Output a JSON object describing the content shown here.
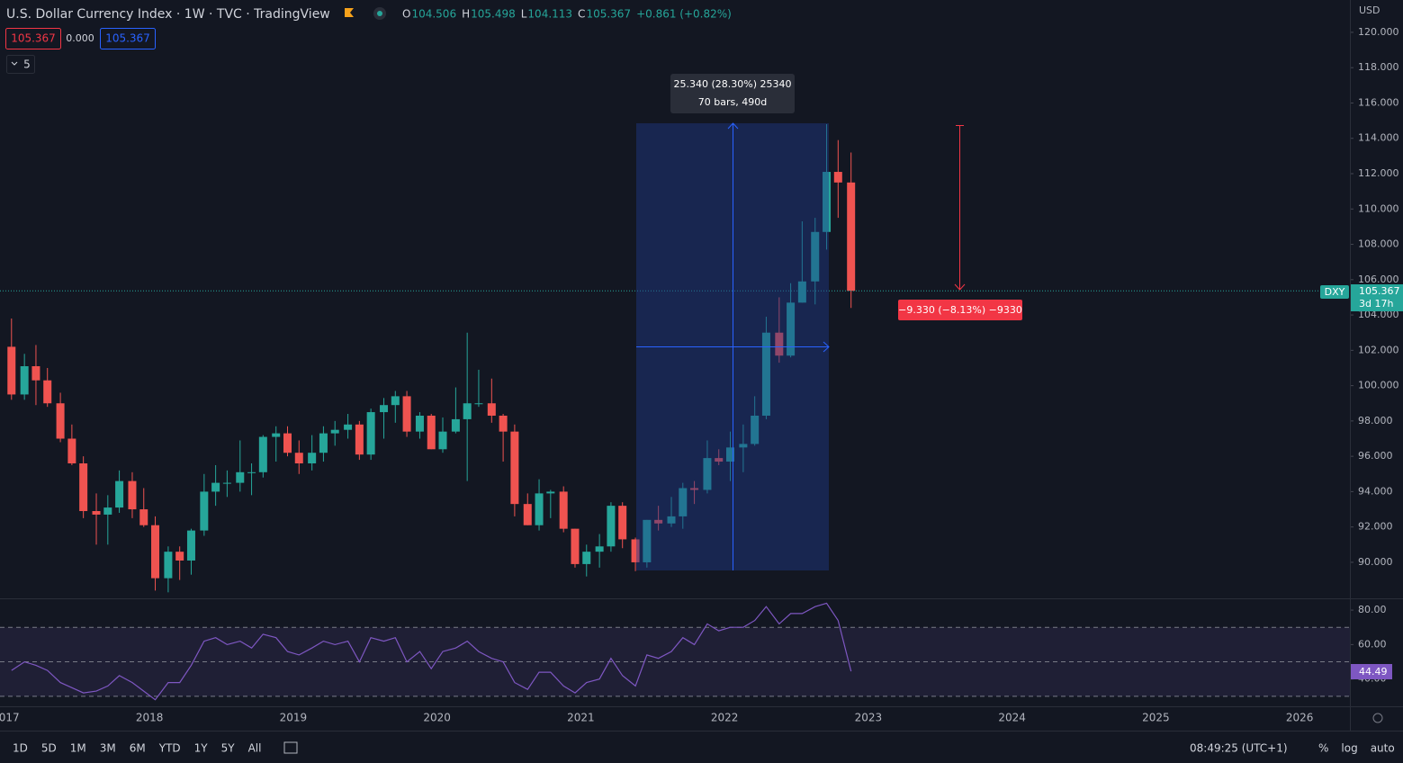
{
  "ui": {
    "title": "U.S. Dollar Currency Index · 1W · TVC · TradingView",
    "ohlc": [
      {
        "k": "O",
        "v": "104.506"
      },
      {
        "k": "H",
        "v": "105.498"
      },
      {
        "k": "L",
        "v": "104.113"
      },
      {
        "k": "C",
        "v": "105.367"
      }
    ],
    "change": "+0.861 (+0.82%)",
    "bid": "105.367",
    "spread": "0.000",
    "ask": "105.367",
    "collapsed": "5",
    "currency": "USD",
    "measure_label": "25.340 (28.30%) 25340",
    "measure_bars": "70 bars, 490d",
    "ruler_label": "−9.330 (−8.13%) −9330",
    "symbol": "DXY",
    "price_badge": "105.367",
    "countdown": "3d 17h",
    "rsi_badge": "44.49",
    "ranges": [
      "1D",
      "5D",
      "1M",
      "3M",
      "6M",
      "YTD",
      "1Y",
      "5Y",
      "All"
    ],
    "clock": "08:49:25 (UTC+1)",
    "scale_opts": [
      "%",
      "log",
      "auto"
    ]
  },
  "chart_data": {
    "type": "candlestick",
    "up_color": "#26a69a",
    "down_color": "#ef5350",
    "x": [
      2017.04,
      2017.13,
      2017.21,
      2017.29,
      2017.38,
      2017.46,
      2017.54,
      2017.63,
      2017.71,
      2017.79,
      2017.88,
      2017.96,
      2018.04,
      2018.13,
      2018.21,
      2018.29,
      2018.38,
      2018.46,
      2018.54,
      2018.63,
      2018.71,
      2018.79,
      2018.88,
      2018.96,
      2019.04,
      2019.13,
      2019.21,
      2019.29,
      2019.38,
      2019.46,
      2019.54,
      2019.63,
      2019.71,
      2019.79,
      2019.88,
      2019.96,
      2020.04,
      2020.13,
      2020.21,
      2020.29,
      2020.38,
      2020.46,
      2020.54,
      2020.63,
      2020.71,
      2020.79,
      2020.88,
      2020.96,
      2021.04,
      2021.13,
      2021.21,
      2021.29,
      2021.38,
      2021.46,
      2021.54,
      2021.63,
      2021.71,
      2021.79,
      2021.88,
      2021.96,
      2022.04,
      2022.13,
      2022.21,
      2022.29,
      2022.38,
      2022.46,
      2022.54,
      2022.63,
      2022.71,
      2022.79,
      2022.88
    ],
    "open": [
      102.2,
      99.5,
      101.1,
      100.3,
      99.0,
      97.0,
      95.6,
      92.9,
      92.7,
      93.1,
      94.6,
      93.0,
      92.1,
      89.1,
      90.6,
      90.1,
      91.8,
      94.0,
      94.5,
      94.5,
      95.1,
      95.1,
      97.1,
      97.3,
      96.2,
      95.6,
      96.2,
      97.3,
      97.5,
      97.8,
      96.1,
      98.5,
      98.9,
      99.4,
      97.4,
      98.3,
      96.4,
      97.4,
      98.1,
      99.0,
      99.0,
      98.3,
      97.4,
      93.3,
      92.1,
      93.9,
      94.0,
      91.9,
      89.9,
      90.6,
      90.9,
      93.2,
      91.3,
      90.0,
      92.4,
      92.2,
      92.6,
      94.2,
      94.1,
      95.9,
      95.7,
      96.5,
      96.7,
      98.3,
      103.0,
      101.7,
      104.7,
      105.9,
      108.7,
      112.1,
      111.5
    ],
    "high": [
      103.8,
      101.8,
      102.3,
      101.0,
      99.6,
      97.8,
      96.0,
      93.9,
      93.8,
      95.2,
      95.1,
      94.2,
      92.6,
      90.9,
      90.9,
      91.9,
      95.0,
      95.5,
      95.2,
      96.9,
      95.6,
      97.2,
      97.7,
      97.7,
      96.9,
      97.2,
      97.7,
      98.0,
      98.4,
      98.0,
      98.7,
      99.3,
      99.7,
      99.7,
      98.5,
      98.4,
      98.2,
      99.9,
      103.0,
      100.9,
      100.4,
      98.4,
      97.8,
      93.9,
      94.7,
      94.1,
      94.3,
      91.9,
      91.0,
      91.6,
      93.4,
      93.4,
      91.4,
      92.4,
      93.2,
      93.7,
      94.5,
      94.6,
      96.9,
      96.4,
      97.4,
      97.8,
      99.4,
      103.9,
      105.0,
      105.8,
      109.3,
      109.5,
      114.8,
      113.9,
      113.2
    ],
    "low": [
      99.2,
      99.2,
      98.9,
      98.8,
      96.8,
      95.5,
      92.5,
      91.0,
      91.0,
      92.8,
      92.5,
      92.0,
      88.4,
      88.3,
      89.0,
      89.3,
      91.5,
      93.2,
      93.7,
      94.0,
      93.8,
      94.8,
      95.7,
      96.0,
      95.0,
      95.2,
      95.7,
      96.6,
      97.0,
      95.8,
      95.8,
      97.0,
      97.9,
      97.1,
      97.0,
      96.4,
      96.2,
      97.3,
      94.6,
      98.8,
      97.9,
      95.7,
      92.6,
      92.1,
      91.8,
      92.5,
      91.7,
      89.7,
      89.2,
      89.7,
      90.6,
      90.8,
      89.5,
      89.7,
      91.8,
      92.0,
      91.9,
      93.3,
      93.9,
      95.5,
      94.6,
      95.1,
      96.6,
      98.1,
      101.3,
      101.6,
      104.7,
      104.6,
      107.7,
      109.5,
      104.4
    ],
    "close": [
      99.5,
      101.1,
      100.3,
      99.0,
      97.0,
      95.6,
      92.9,
      92.7,
      93.1,
      94.6,
      93.0,
      92.1,
      89.1,
      90.6,
      90.1,
      91.8,
      94.0,
      94.5,
      94.5,
      95.1,
      95.1,
      97.1,
      97.3,
      96.2,
      95.6,
      96.2,
      97.3,
      97.5,
      97.8,
      96.1,
      98.5,
      98.9,
      99.4,
      97.4,
      98.3,
      96.4,
      97.4,
      98.1,
      99.0,
      99.0,
      98.3,
      97.4,
      93.3,
      92.1,
      93.9,
      94.0,
      91.9,
      89.9,
      90.6,
      90.9,
      93.2,
      91.3,
      90.0,
      92.4,
      92.2,
      92.6,
      94.2,
      94.1,
      95.9,
      95.7,
      96.5,
      96.7,
      98.3,
      103.0,
      101.7,
      104.7,
      105.9,
      108.7,
      112.1,
      111.5,
      105.367
    ],
    "rsi": [
      45,
      50,
      48,
      45,
      38,
      35,
      32,
      33,
      36,
      42,
      38,
      33,
      28,
      38,
      38,
      48,
      62,
      64,
      60,
      62,
      58,
      66,
      64,
      56,
      54,
      58,
      62,
      60,
      62,
      50,
      64,
      62,
      64,
      50,
      56,
      46,
      56,
      58,
      62,
      56,
      52,
      50,
      38,
      34,
      44,
      44,
      36,
      32,
      38,
      40,
      52,
      42,
      36,
      54,
      52,
      56,
      64,
      60,
      72,
      68,
      70,
      70,
      74,
      82,
      72,
      78,
      78,
      82,
      84,
      74,
      44.49
    ],
    "rsi_color": "#7e57c2",
    "rsi_levels": [
      30,
      50,
      70
    ],
    "xlim": [
      2016.96,
      2026.35
    ],
    "xticks": [
      2017,
      2018,
      2019,
      2020,
      2021,
      2022,
      2023,
      2024,
      2025,
      2026
    ],
    "ylim": [
      87.96,
      121.83
    ],
    "yticks": [
      {
        "value": 90,
        "label": "90.000"
      },
      {
        "value": 92,
        "label": "92.000"
      },
      {
        "value": 94,
        "label": "94.000"
      },
      {
        "value": 96,
        "label": "96.000"
      },
      {
        "value": 98,
        "label": "98.000"
      },
      {
        "value": 100,
        "label": "100.000"
      },
      {
        "value": 102,
        "label": "102.000"
      },
      {
        "value": 104,
        "label": "104.000"
      },
      {
        "value": 106,
        "label": "106.000"
      },
      {
        "value": 108,
        "label": "108.000"
      },
      {
        "value": 110,
        "label": "110.000"
      },
      {
        "value": 112,
        "label": "112.000"
      },
      {
        "value": 114,
        "label": "114.000"
      },
      {
        "value": 116,
        "label": "116.000"
      },
      {
        "value": 118,
        "label": "118.000"
      },
      {
        "value": 120,
        "label": "120.000"
      }
    ],
    "rsilim": [
      24.2,
      86.3
    ],
    "rsiticks": [
      {
        "value": 40,
        "label": "40.00"
      },
      {
        "value": 60,
        "label": "60.00"
      },
      {
        "value": 80,
        "label": "80.00"
      }
    ]
  }
}
